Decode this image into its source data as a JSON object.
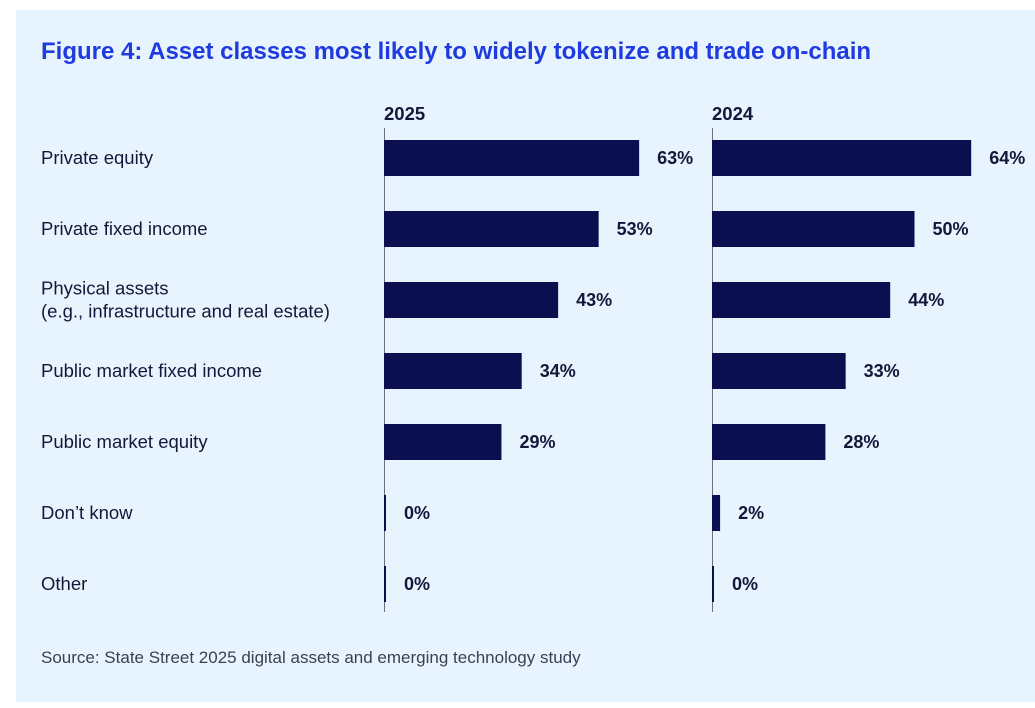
{
  "title": "Figure 4: Asset classes most likely to widely tokenize and trade on-chain",
  "source": "Source: State Street 2025 digital assets and emerging technology study",
  "colors": {
    "panel_bg": "#e7f4fd",
    "title": "#1f3be0",
    "bar": "#0b0f4f",
    "text": "#15173a",
    "axis": "#6b7080"
  },
  "chart_data": {
    "type": "bar",
    "orientation": "horizontal",
    "title": "Figure 4: Asset classes most likely to widely tokenize and trade on-chain",
    "categories": [
      [
        "Private equity"
      ],
      [
        "Private fixed income"
      ],
      [
        "Physical assets",
        "(e.g., infrastructure and real estate)"
      ],
      [
        "Public market fixed income"
      ],
      [
        "Public market equity"
      ],
      [
        "Don’t know"
      ],
      [
        "Other"
      ]
    ],
    "series": [
      {
        "name": "2025",
        "values": [
          63,
          53,
          43,
          34,
          29,
          0,
          0
        ],
        "labels": [
          "63%",
          "53%",
          "43%",
          "34%",
          "29%",
          "0%",
          "0%"
        ]
      },
      {
        "name": "2024",
        "values": [
          64,
          50,
          44,
          33,
          28,
          2,
          0
        ],
        "labels": [
          "64%",
          "50%",
          "44%",
          "33%",
          "28%",
          "2%",
          "0%"
        ]
      }
    ],
    "unit": "%",
    "xlim": [
      0,
      100
    ],
    "grid": false,
    "legend": "panel headers"
  }
}
